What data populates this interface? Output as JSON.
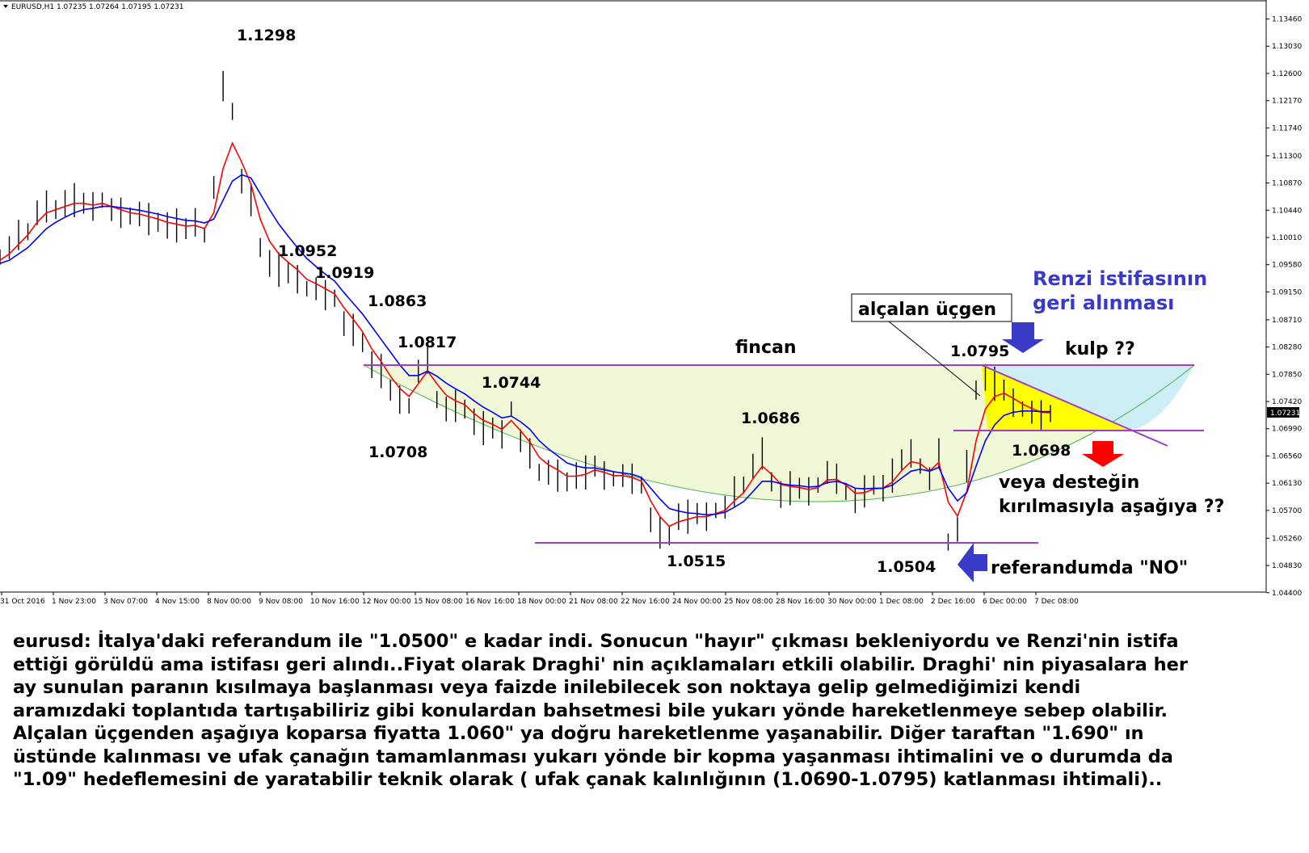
{
  "header": {
    "symbol_text": "EURUSD,H1  1.07235 1.07264 1.07195 1.07231"
  },
  "chart_data": {
    "type": "line",
    "title": "",
    "xlabel": "",
    "ylabel": "",
    "ylim": [
      1.0441,
      1.1376
    ],
    "y_ticks": [
      "1.13460",
      "1.13030",
      "1.12600",
      "1.12170",
      "1.11740",
      "1.11300",
      "1.10870",
      "1.10440",
      "1.10010",
      "1.09580",
      "1.09150",
      "1.08710",
      "1.08280",
      "1.07850",
      "1.07420",
      "1.06990",
      "1.06560",
      "1.06130",
      "1.05700",
      "1.05260",
      "1.04830",
      "1.04400"
    ],
    "current_price_label": "1.07231",
    "current_price": 1.07231,
    "x_ticks": [
      "31 Oct 2016",
      "1 Nov 23:00",
      "3 Nov 07:00",
      "4 Nov 15:00",
      "8 Nov 00:00",
      "9 Nov 08:00",
      "10 Nov 16:00",
      "12 Nov 00:00",
      "15 Nov 08:00",
      "16 Nov 16:00",
      "18 Nov 00:00",
      "21 Nov 08:00",
      "22 Nov 16:00",
      "24 Nov 00:00",
      "25 Nov 08:00",
      "28 Nov 16:00",
      "30 Nov 00:00",
      "1 Dec 08:00",
      "2 Dec 16:00",
      "6 Dec 00:00",
      "7 Dec 08:00"
    ],
    "series": [
      {
        "name": "",
        "color": "#000000",
        "style": "ohlc",
        "values": [
          1.097,
          1.0985,
          1.1005,
          1.101,
          1.104,
          1.105,
          1.1045,
          1.1055,
          1.106,
          1.1055,
          1.105,
          1.106,
          1.1045,
          1.104,
          1.1035,
          1.1038,
          1.103,
          1.1025,
          1.102,
          1.102,
          1.1015,
          1.1025,
          1.1005,
          1.108,
          1.124,
          1.12,
          1.109,
          1.106,
          1.0985,
          1.096,
          1.095,
          1.0945,
          1.0935,
          1.092,
          1.092,
          1.091,
          1.0905,
          1.0865,
          1.0855,
          1.0835,
          1.08,
          1.079,
          1.076,
          1.0745,
          1.0735,
          1.079,
          1.081,
          1.0745,
          1.073,
          1.0735,
          1.073,
          1.071,
          1.07,
          1.07,
          1.069,
          1.073,
          1.068,
          1.066,
          1.063,
          1.063,
          1.0625,
          1.0615,
          1.0625,
          1.063,
          1.064,
          1.0625,
          1.062,
          1.0625,
          1.062,
          1.061,
          1.0555,
          1.0535,
          1.053,
          1.056,
          1.056,
          1.0565,
          1.056,
          1.057,
          1.0575,
          1.06,
          1.061,
          1.064,
          1.066,
          1.0615,
          1.0595,
          1.0605,
          1.0605,
          1.06,
          1.061,
          1.063,
          1.062,
          1.06,
          1.0585,
          1.06,
          1.061,
          1.0605,
          1.0625,
          1.065,
          1.066,
          1.064,
          1.062,
          1.066,
          1.052,
          1.054,
          1.064,
          1.076,
          1.078,
          1.077,
          1.076,
          1.074,
          1.073,
          1.0725,
          1.072,
          1.0723
        ]
      },
      {
        "name": "",
        "color": "#ff0000",
        "style": "line",
        "values": [
          1.0965,
          1.0975,
          1.099,
          1.1005,
          1.1025,
          1.104,
          1.1045,
          1.105,
          1.1055,
          1.1055,
          1.1052,
          1.1055,
          1.105,
          1.1045,
          1.104,
          1.1038,
          1.1034,
          1.103,
          1.1025,
          1.1022,
          1.1019,
          1.102,
          1.1015,
          1.104,
          1.111,
          1.115,
          1.112,
          1.1085,
          1.103,
          1.0995,
          1.0975,
          1.0962,
          1.095,
          1.0935,
          1.0928,
          1.092,
          1.0912,
          1.089,
          1.0872,
          1.0852,
          1.0825,
          1.0805,
          1.0782,
          1.0763,
          1.075,
          1.077,
          1.079,
          1.077,
          1.0752,
          1.0743,
          1.0737,
          1.0723,
          1.0712,
          1.0706,
          1.0698,
          1.0712,
          1.0696,
          1.0678,
          1.0654,
          1.0642,
          1.0634,
          1.0624,
          1.0624,
          1.0627,
          1.0634,
          1.063,
          1.0625,
          1.0625,
          1.0622,
          1.0616,
          1.0585,
          1.056,
          1.0545,
          1.0552,
          1.0556,
          1.056,
          1.056,
          1.0565,
          1.057,
          1.0585,
          1.0598,
          1.062,
          1.064,
          1.0627,
          1.0611,
          1.0608,
          1.0606,
          1.0603,
          1.0606,
          1.0618,
          1.0619,
          1.061,
          1.0597,
          1.0598,
          1.0604,
          1.0605,
          1.0615,
          1.0633,
          1.0647,
          1.0644,
          1.0632,
          1.0646,
          1.0583,
          1.0561,
          1.06,
          1.068,
          1.073,
          1.075,
          1.0755,
          1.0747,
          1.0738,
          1.0731,
          1.0725,
          1.0724
        ]
      },
      {
        "name": "",
        "color": "#0000ff",
        "style": "line",
        "values": [
          1.096,
          1.0965,
          1.0975,
          1.0985,
          1.1,
          1.1015,
          1.1025,
          1.1033,
          1.104,
          1.1045,
          1.1047,
          1.105,
          1.105,
          1.1048,
          1.1046,
          1.1044,
          1.1041,
          1.1038,
          1.1034,
          1.1031,
          1.1028,
          1.1027,
          1.1024,
          1.103,
          1.106,
          1.109,
          1.11,
          1.1095,
          1.107,
          1.1045,
          1.1022,
          1.1003,
          1.0985,
          1.0968,
          1.0955,
          1.0943,
          1.0932,
          1.0914,
          1.0897,
          1.088,
          1.086,
          1.084,
          1.082,
          1.08,
          1.0783,
          1.0783,
          1.079,
          1.0782,
          1.0771,
          1.0762,
          1.0754,
          1.0743,
          1.0733,
          1.0725,
          1.0716,
          1.0719,
          1.071,
          1.0698,
          1.068,
          1.0667,
          1.0656,
          1.0645,
          1.064,
          1.0637,
          1.0637,
          1.0634,
          1.0631,
          1.0629,
          1.0627,
          1.0622,
          1.0605,
          1.0588,
          1.0573,
          1.0569,
          1.0566,
          1.0565,
          1.0563,
          1.0564,
          1.0567,
          1.0575,
          1.0584,
          1.06,
          1.0616,
          1.0616,
          1.0612,
          1.061,
          1.0609,
          1.0607,
          1.0608,
          1.0614,
          1.0616,
          1.0612,
          1.0605,
          1.0604,
          1.0605,
          1.0605,
          1.061,
          1.0621,
          1.0632,
          1.0635,
          1.0632,
          1.0638,
          1.0605,
          1.0585,
          1.0598,
          1.064,
          1.068,
          1.0705,
          1.072,
          1.0725,
          1.0727,
          1.0727,
          1.0726,
          1.0726
        ]
      }
    ],
    "annotations": [
      {
        "text": "1.1298"
      },
      {
        "text": "1.0952"
      },
      {
        "text": "1.0919"
      },
      {
        "text": "1.0863"
      },
      {
        "text": "1.0817"
      },
      {
        "text": "1.0744"
      },
      {
        "text": "1.0708"
      },
      {
        "text": "fincan"
      },
      {
        "text": "1.0686"
      },
      {
        "text": "1.0515"
      },
      {
        "text": "1.0504"
      },
      {
        "text": "1.0795"
      },
      {
        "text": "kulp ??"
      },
      {
        "text": "alçalan üçgen"
      },
      {
        "text": "Renzi istifasının"
      },
      {
        "text": "geri alınması"
      },
      {
        "text": "1.0698"
      },
      {
        "text": "veya desteğin"
      },
      {
        "text": "kırılmasıyla aşağıya ??"
      },
      {
        "text": "referandumda \"NO\""
      }
    ],
    "reference_levels": [
      1.0795,
      1.0698,
      1.0515
    ],
    "colors": {
      "cup_fill": "#f0f8d8",
      "handle_fill": "#cdeef5",
      "triangle_fill": "#ffff00",
      "level_line": "#a040c0",
      "cup_curve": "#4caf50",
      "arrow_blue": "#3a3ac8",
      "arrow_red": "#ff0000"
    }
  },
  "caption": {
    "lines": [
      "eurusd: İtalya'daki referandum ile \"1.0500\" e kadar indi. Sonucun \"hayır\" çıkması bekleniyordu ve Renzi'nin istifa",
      "ettiği görüldü ama istifası geri alındı..Fiyat olarak Draghi' nin açıklamaları etkili olabilir. Draghi' nin piyasalara her",
      "ay sunulan paranın kısılmaya başlanması veya faizde inilebilecek son noktaya gelip gelmediğimizi kendi",
      "aramızdaki toplantıda tartışabiliriz gibi konulardan bahsetmesi bile yukarı yönde hareketlenmeye sebep olabilir.",
      "Alçalan üçgenden aşağıya koparsa fiyatta 1.060\" ya doğru hareketlenme yaşanabilir. Diğer taraftan \"1.690\" ın",
      "üstünde kalınması ve ufak çanağın tamamlanması yukarı yönde bir kopma yaşanması ihtimalini ve o durumda da",
      "\"1.09\" hedeflemesini de yaratabilir teknik olarak ( ufak çanak kalınlığının (1.0690-1.0795) katlanması ihtimali).."
    ]
  }
}
